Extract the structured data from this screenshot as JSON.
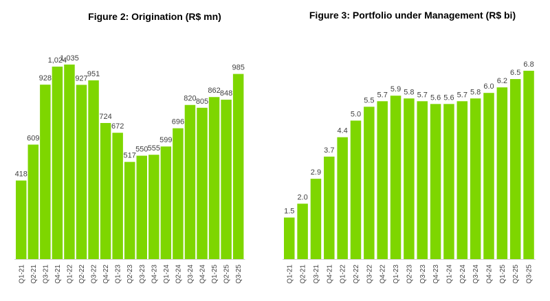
{
  "colors": {
    "bar": "#7ed600",
    "axis": "#d0d0d0",
    "text": "#404040"
  },
  "chart_data": [
    {
      "type": "bar",
      "title": "Figure 2: Origination (R$ mn)",
      "xlabel": "",
      "ylabel": "",
      "ylim": [
        0,
        1100
      ],
      "categories": [
        "Q1-21",
        "Q2-21",
        "Q3-21",
        "Q4-21",
        "Q1-22",
        "Q2-22",
        "Q3-22",
        "Q4-22",
        "Q1-23",
        "Q2-23",
        "Q3-23",
        "Q4-23",
        "Q1-24",
        "Q2-24",
        "Q3-24",
        "Q4-24",
        "Q1-25",
        "Q2-25",
        "Q3-25"
      ],
      "values": [
        418,
        609,
        928,
        1024,
        1035,
        927,
        951,
        724,
        672,
        517,
        550,
        555,
        599,
        696,
        820,
        805,
        862,
        848,
        985
      ],
      "labels": [
        "418",
        "609",
        "928",
        "1,024",
        "1,035",
        "927",
        "951",
        "724",
        "672",
        "517",
        "550",
        "555",
        "599",
        "696",
        "820",
        "805",
        "862",
        "848",
        "985"
      ]
    },
    {
      "type": "bar",
      "title": "Figure 3: Portfolio under Management (R$ bi)",
      "xlabel": "",
      "ylabel": "",
      "ylim": [
        0,
        7.5
      ],
      "categories": [
        "Q1-21",
        "Q2-21",
        "Q3-21",
        "Q4-21",
        "Q1-22",
        "Q2-22",
        "Q3-22",
        "Q4-22",
        "Q1-23",
        "Q2-23",
        "Q3-23",
        "Q4-23",
        "Q1-24",
        "Q2-24",
        "Q3-24",
        "Q4-24",
        "Q1-25",
        "Q2-25",
        "Q3-25"
      ],
      "values": [
        1.5,
        2.0,
        2.9,
        3.7,
        4.4,
        5.0,
        5.5,
        5.7,
        5.9,
        5.8,
        5.7,
        5.6,
        5.6,
        5.7,
        5.8,
        6.0,
        6.2,
        6.5,
        6.8
      ],
      "labels": [
        "1.5",
        "2.0",
        "2.9",
        "3.7",
        "4.4",
        "5.0",
        "5.5",
        "5.7",
        "5.9",
        "5.8",
        "5.7",
        "5.6",
        "5.6",
        "5.7",
        "5.8",
        "6.0",
        "6.2",
        "6.5",
        "6.8"
      ]
    }
  ]
}
